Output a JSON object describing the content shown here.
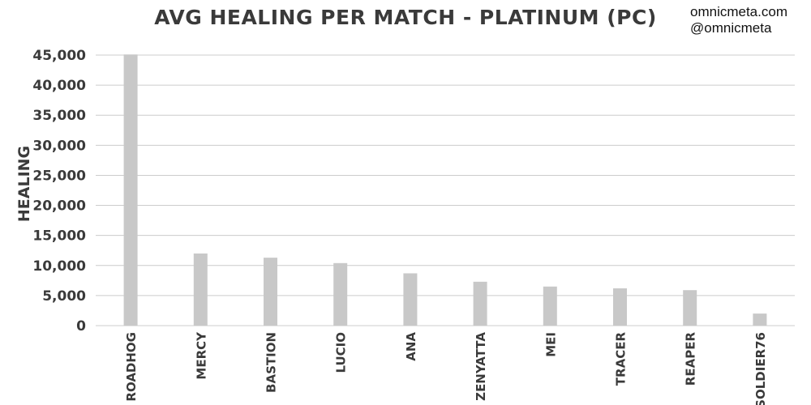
{
  "chart_data": {
    "type": "bar",
    "title": "AVG HEALING PER MATCH - PLATINUM (PC)",
    "ylabel": "HEALING",
    "xlabel": "",
    "categories": [
      "ROADHOG",
      "MERCY",
      "BASTION",
      "LUCIO",
      "ANA",
      "ZENYATTA",
      "MEI",
      "TRACER",
      "REAPER",
      "SOLDIER76"
    ],
    "values": [
      45100,
      12000,
      11300,
      10400,
      8700,
      7300,
      6500,
      6200,
      5900,
      2000
    ],
    "ylim": [
      0,
      45000
    ],
    "yticks": [
      0,
      5000,
      10000,
      15000,
      20000,
      25000,
      30000,
      35000,
      40000,
      45000
    ],
    "ytick_labels": [
      "0",
      "5,000",
      "10,000",
      "15,000",
      "20,000",
      "25,000",
      "30,000",
      "35,000",
      "40,000",
      "45,000"
    ],
    "grid": true,
    "legend": "none",
    "bar_color": "#c8c8c8",
    "grid_color": "#cccccc",
    "text_color": "#3a3a3a"
  },
  "credits": {
    "site": "omnicmeta.com",
    "handle": "@omnicmeta"
  }
}
